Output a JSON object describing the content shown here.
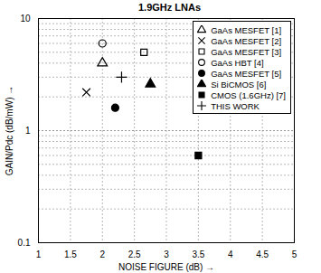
{
  "chart_data": {
    "type": "scatter",
    "title": "1.9GHz LNAs",
    "x_label": "NOISE FIGURE (dB)",
    "y_label": "GAIN/Pdc (dB/mW)",
    "xlim": [
      1,
      5
    ],
    "xticks": [
      1,
      1.5,
      2,
      2.5,
      3,
      3.5,
      4,
      4.5,
      5
    ],
    "ylim": [
      0.1,
      10
    ],
    "yticks": [
      0.1,
      1,
      10
    ],
    "log": "y",
    "grid": true,
    "legend": "top-right",
    "series": [
      {
        "name": "GaAs MESFET [1]",
        "marker": "triangle-open",
        "color": "#000000",
        "x": [
          2.0
        ],
        "values": [
          4.0
        ]
      },
      {
        "name": "GaAs MESFET [2]",
        "marker": "x",
        "color": "#000000",
        "x": [
          1.75
        ],
        "values": [
          2.2
        ]
      },
      {
        "name": "GaAs MESFET [3]",
        "marker": "square-open",
        "color": "#000000",
        "x": [
          2.65
        ],
        "values": [
          5.0
        ]
      },
      {
        "name": "GaAs  HBT [4]",
        "marker": "circle-open",
        "color": "#000000",
        "x": [
          2.0
        ],
        "values": [
          6.0
        ]
      },
      {
        "name": "GaAs MESFET [5]",
        "marker": "circle",
        "color": "#000000",
        "x": [
          2.2
        ],
        "values": [
          1.6
        ]
      },
      {
        "name": "Si BiCMOS [6]",
        "marker": "triangle",
        "color": "#000000",
        "x": [
          2.75
        ],
        "values": [
          2.6
        ]
      },
      {
        "name": "CMOS (1.6GHz) [7]",
        "marker": "square",
        "color": "#000000",
        "x": [
          3.5
        ],
        "values": [
          0.6
        ]
      },
      {
        "name": "THIS WORK",
        "marker": "plus",
        "color": "#000000",
        "x": [
          2.3
        ],
        "values": [
          3.0
        ]
      }
    ]
  }
}
